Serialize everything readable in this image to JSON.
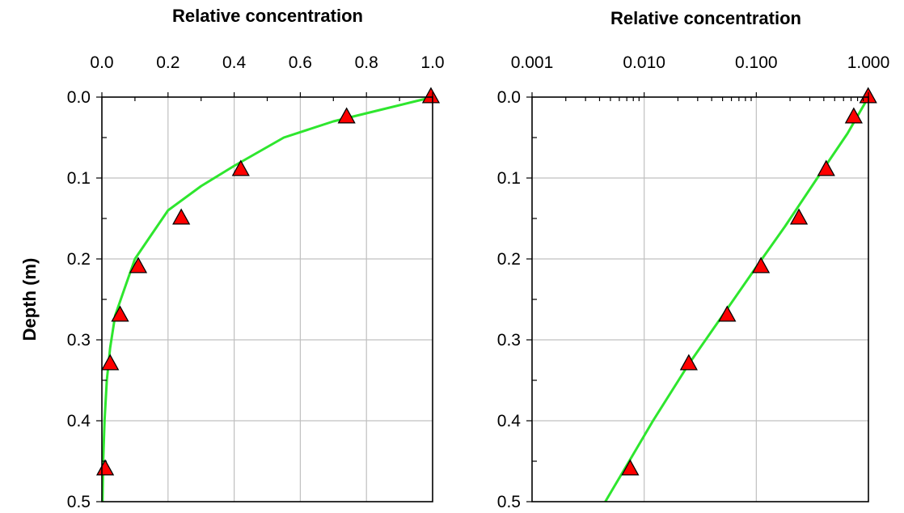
{
  "chart_data": [
    {
      "type": "line",
      "title": "Relative concentration",
      "xlabel": "Relative concentration",
      "ylabel": "Depth (m)",
      "x_scale": "linear",
      "xlim": [
        0,
        1
      ],
      "ylim": [
        0,
        0.5
      ],
      "y_inverted": true,
      "grid": true,
      "x_ticks": [
        "0.0",
        "0.2",
        "0.4",
        "0.6",
        "0.8",
        "1.0"
      ],
      "y_ticks": [
        "0.0",
        "0.1",
        "0.2",
        "0.3",
        "0.4",
        "0.5"
      ],
      "series": [
        {
          "type": "line",
          "color": "#2ee62e",
          "x": [
            1.0,
            0.85,
            0.7,
            0.55,
            0.4,
            0.3,
            0.2,
            0.15,
            0.1,
            0.07,
            0.04,
            0.025,
            0.015,
            0.008,
            0.004,
            0.002
          ],
          "y": [
            0.0,
            0.015,
            0.03,
            0.05,
            0.085,
            0.11,
            0.14,
            0.17,
            0.2,
            0.235,
            0.27,
            0.31,
            0.35,
            0.4,
            0.45,
            0.5
          ]
        },
        {
          "type": "scatter",
          "marker": "triangle",
          "color": "#ff0000",
          "x": [
            0.995,
            0.74,
            0.42,
            0.24,
            0.11,
            0.055,
            0.025,
            0.01
          ],
          "y": [
            0.0,
            0.025,
            0.09,
            0.15,
            0.21,
            0.27,
            0.33,
            0.46
          ]
        }
      ]
    },
    {
      "type": "line",
      "title": "Relative concentration",
      "xlabel": "Relative concentration",
      "ylabel": "",
      "x_scale": "log",
      "xlim": [
        0.001,
        1
      ],
      "ylim": [
        0,
        0.5
      ],
      "y_inverted": true,
      "grid": true,
      "x_ticks": [
        "0.001",
        "0.010",
        "0.100",
        "1.000"
      ],
      "y_ticks": [
        "0.0",
        "0.1",
        "0.2",
        "0.3",
        "0.4",
        "0.5"
      ],
      "series": [
        {
          "type": "line",
          "color": "#2ee62e",
          "x": [
            1.0,
            0.65,
            0.35,
            0.18,
            0.1,
            0.05,
            0.025,
            0.012,
            0.0045
          ],
          "y": [
            0.0,
            0.045,
            0.1,
            0.16,
            0.21,
            0.27,
            0.33,
            0.4,
            0.5
          ]
        },
        {
          "type": "scatter",
          "marker": "triangle",
          "color": "#ff0000",
          "x": [
            0.995,
            0.74,
            0.42,
            0.24,
            0.11,
            0.055,
            0.025,
            0.0075
          ],
          "y": [
            0.0,
            0.025,
            0.09,
            0.15,
            0.21,
            0.27,
            0.33,
            0.46
          ]
        }
      ]
    }
  ]
}
